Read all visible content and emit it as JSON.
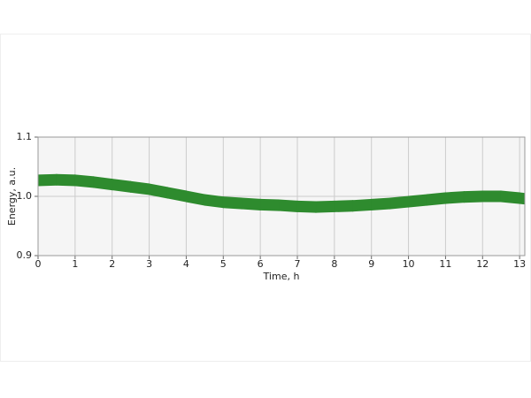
{
  "chart_data": {
    "type": "band",
    "xlabel": "Time, h",
    "ylabel": "Energy, a.u.",
    "x": [
      0,
      0.5,
      1,
      1.5,
      2,
      2.5,
      3,
      3.5,
      4,
      4.5,
      5,
      5.5,
      6,
      6.5,
      7,
      7.5,
      8,
      8.5,
      9,
      9.5,
      10,
      10.5,
      11,
      11.5,
      12,
      12.5,
      13,
      13.14
    ],
    "high": [
      1.036,
      1.037,
      1.036,
      1.033,
      1.029,
      1.025,
      1.021,
      1.015,
      1.009,
      1.003,
      0.999,
      0.997,
      0.995,
      0.994,
      0.992,
      0.991,
      0.992,
      0.993,
      0.995,
      0.997,
      1.0,
      1.003,
      1.006,
      1.008,
      1.009,
      1.009,
      1.006,
      1.005
    ],
    "low": [
      1.018,
      1.019,
      1.018,
      1.015,
      1.011,
      1.007,
      1.003,
      0.997,
      0.991,
      0.985,
      0.981,
      0.979,
      0.977,
      0.976,
      0.974,
      0.973,
      0.974,
      0.975,
      0.977,
      0.979,
      0.982,
      0.985,
      0.988,
      0.99,
      0.991,
      0.991,
      0.988,
      0.987
    ],
    "color": "#2e8b2e",
    "xlim": [
      0,
      13.14
    ],
    "ylim": [
      0.9,
      1.1
    ],
    "xticks": [
      0,
      1,
      2,
      3,
      4,
      5,
      6,
      7,
      8,
      9,
      10,
      11,
      12,
      13
    ],
    "yticks": [
      {
        "value": 0.9,
        "label": "0.9"
      },
      {
        "value": 1.0,
        "label": "1.0"
      },
      {
        "value": 1.1,
        "label": "1.1"
      }
    ],
    "grid": true
  }
}
